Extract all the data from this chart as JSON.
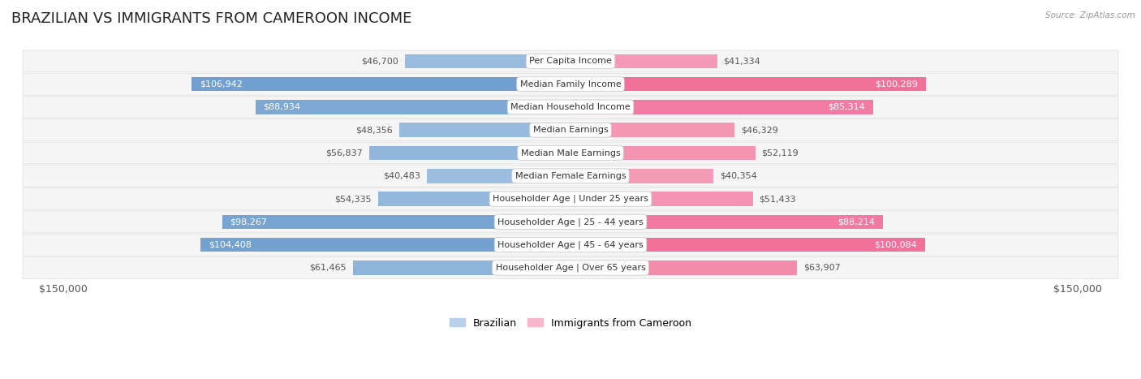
{
  "title": "BRAZILIAN VS IMMIGRANTS FROM CAMEROON INCOME",
  "source": "Source: ZipAtlas.com",
  "categories": [
    "Per Capita Income",
    "Median Family Income",
    "Median Household Income",
    "Median Earnings",
    "Median Male Earnings",
    "Median Female Earnings",
    "Householder Age | Under 25 years",
    "Householder Age | 25 - 44 years",
    "Householder Age | 45 - 64 years",
    "Householder Age | Over 65 years"
  ],
  "brazilian_values": [
    46700,
    106942,
    88934,
    48356,
    56837,
    40483,
    54335,
    98267,
    104408,
    61465
  ],
  "cameroon_values": [
    41334,
    100289,
    85314,
    46329,
    52119,
    40354,
    51433,
    88214,
    100084,
    63907
  ],
  "max_value": 150000,
  "brazilian_color_light": "#b8d0e8",
  "brazilian_color_dark": "#6699cc",
  "cameroon_color_light": "#f7b8cc",
  "cameroon_color_dark": "#f06090",
  "white_threshold": 75000,
  "bar_height": 0.62,
  "row_bg_color": "#f5f5f5",
  "row_border_color": "#dddddd",
  "legend_brazilian": "Brazilian",
  "legend_cameroon": "Immigrants from Cameroon",
  "xlabel_left": "$150,000",
  "xlabel_right": "$150,000",
  "title_fontsize": 13,
  "value_fontsize": 8,
  "category_fontsize": 8
}
